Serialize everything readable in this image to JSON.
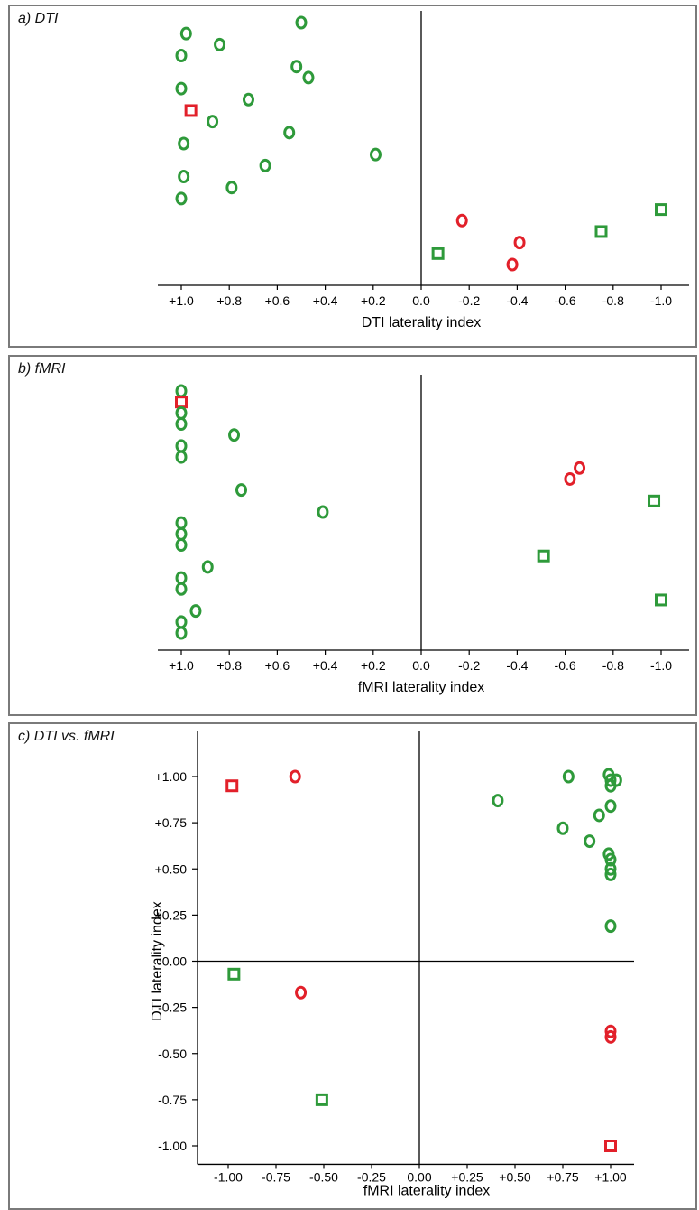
{
  "colors": {
    "green": "#2e9a3a",
    "red": "#e2202a",
    "axis": "#000000"
  },
  "panels": {
    "a": {
      "title": "a) DTI"
    },
    "b": {
      "title": "b) fMRI"
    },
    "c": {
      "title": "c) DTI vs. fMRI"
    }
  },
  "chart_data": [
    {
      "type": "scatter",
      "title": "a) DTI",
      "xlabel": "DTI laterality index",
      "ylabel": "",
      "xlim": [
        1.1,
        -1.1
      ],
      "x_reversed": true,
      "x_ticks": [
        {
          "value": 1.0,
          "label": "+1.0"
        },
        {
          "value": 0.8,
          "label": "+0.8"
        },
        {
          "value": 0.6,
          "label": "+0.6"
        },
        {
          "value": 0.4,
          "label": "+0.4"
        },
        {
          "value": 0.2,
          "label": "+0.2"
        },
        {
          "value": 0.0,
          "label": "0.0"
        },
        {
          "value": -0.2,
          "label": "-0.2"
        },
        {
          "value": -0.4,
          "label": "-0.4"
        },
        {
          "value": -0.6,
          "label": "-0.6"
        },
        {
          "value": -0.8,
          "label": "-0.8"
        },
        {
          "value": -1.0,
          "label": "-1.0"
        }
      ],
      "points": [
        {
          "x": 0.5,
          "color": "green",
          "marker": "circle"
        },
        {
          "x": 0.98,
          "color": "green",
          "marker": "circle"
        },
        {
          "x": 0.84,
          "color": "green",
          "marker": "circle"
        },
        {
          "x": 1.0,
          "color": "green",
          "marker": "circle"
        },
        {
          "x": 0.52,
          "color": "green",
          "marker": "circle"
        },
        {
          "x": 0.47,
          "color": "green",
          "marker": "circle"
        },
        {
          "x": 1.0,
          "color": "green",
          "marker": "circle"
        },
        {
          "x": 0.72,
          "color": "green",
          "marker": "circle"
        },
        {
          "x": 0.96,
          "color": "red",
          "marker": "square"
        },
        {
          "x": 0.87,
          "color": "green",
          "marker": "circle"
        },
        {
          "x": 0.55,
          "color": "green",
          "marker": "circle"
        },
        {
          "x": 0.99,
          "color": "green",
          "marker": "circle"
        },
        {
          "x": 0.19,
          "color": "green",
          "marker": "circle"
        },
        {
          "x": 0.65,
          "color": "green",
          "marker": "circle"
        },
        {
          "x": 0.99,
          "color": "green",
          "marker": "circle"
        },
        {
          "x": 0.79,
          "color": "green",
          "marker": "circle"
        },
        {
          "x": 1.0,
          "color": "green",
          "marker": "circle"
        },
        {
          "x": -1.0,
          "color": "green",
          "marker": "square"
        },
        {
          "x": -0.17,
          "color": "red",
          "marker": "circle"
        },
        {
          "x": -0.75,
          "color": "green",
          "marker": "square"
        },
        {
          "x": -0.41,
          "color": "red",
          "marker": "circle"
        },
        {
          "x": -0.07,
          "color": "green",
          "marker": "square"
        },
        {
          "x": -0.38,
          "color": "red",
          "marker": "circle"
        }
      ]
    },
    {
      "type": "scatter",
      "title": "b) fMRI",
      "xlabel": "fMRI laterality index",
      "ylabel": "",
      "xlim": [
        1.1,
        -1.1
      ],
      "x_reversed": true,
      "x_ticks": [
        {
          "value": 1.0,
          "label": "+1.0"
        },
        {
          "value": 0.8,
          "label": "+0.8"
        },
        {
          "value": 0.6,
          "label": "+0.6"
        },
        {
          "value": 0.4,
          "label": "+0.4"
        },
        {
          "value": 0.2,
          "label": "+0.2"
        },
        {
          "value": 0.0,
          "label": "0.0"
        },
        {
          "value": -0.2,
          "label": "-0.2"
        },
        {
          "value": -0.4,
          "label": "-0.4"
        },
        {
          "value": -0.6,
          "label": "-0.6"
        },
        {
          "value": -0.8,
          "label": "-0.8"
        },
        {
          "value": -1.0,
          "label": "-1.0"
        }
      ],
      "points": [
        {
          "x": 1.0,
          "color": "green",
          "marker": "circle"
        },
        {
          "x": 1.0,
          "color": "red",
          "marker": "square"
        },
        {
          "x": 1.0,
          "color": "green",
          "marker": "circle"
        },
        {
          "x": 1.0,
          "color": "green",
          "marker": "circle"
        },
        {
          "x": 0.78,
          "color": "green",
          "marker": "circle"
        },
        {
          "x": 1.0,
          "color": "green",
          "marker": "circle"
        },
        {
          "x": 1.0,
          "color": "green",
          "marker": "circle"
        },
        {
          "x": -0.66,
          "color": "red",
          "marker": "circle"
        },
        {
          "x": -0.62,
          "color": "red",
          "marker": "circle"
        },
        {
          "x": 0.75,
          "color": "green",
          "marker": "circle"
        },
        {
          "x": -0.97,
          "color": "green",
          "marker": "square"
        },
        {
          "x": 0.41,
          "color": "green",
          "marker": "circle"
        },
        {
          "x": 1.0,
          "color": "green",
          "marker": "circle"
        },
        {
          "x": 1.0,
          "color": "green",
          "marker": "circle"
        },
        {
          "x": 1.0,
          "color": "green",
          "marker": "circle"
        },
        {
          "x": -0.51,
          "color": "green",
          "marker": "square"
        },
        {
          "x": 0.89,
          "color": "green",
          "marker": "circle"
        },
        {
          "x": 1.0,
          "color": "green",
          "marker": "circle"
        },
        {
          "x": 1.0,
          "color": "green",
          "marker": "circle"
        },
        {
          "x": -1.0,
          "color": "green",
          "marker": "square"
        },
        {
          "x": 0.94,
          "color": "green",
          "marker": "circle"
        },
        {
          "x": 1.0,
          "color": "green",
          "marker": "circle"
        },
        {
          "x": 1.0,
          "color": "green",
          "marker": "circle"
        }
      ]
    },
    {
      "type": "scatter",
      "title": "c) DTI vs. fMRI",
      "xlabel": "fMRI laterality index",
      "ylabel": "DTI laterality index",
      "xlim": [
        -1.1,
        1.1
      ],
      "ylim": [
        -1.1,
        1.1
      ],
      "x_ticks": [
        {
          "value": -1.0,
          "label": "-1.00"
        },
        {
          "value": -0.75,
          "label": "-0.75"
        },
        {
          "value": -0.5,
          "label": "-0.50"
        },
        {
          "value": -0.25,
          "label": "-0.25"
        },
        {
          "value": 0.0,
          "label": "0.00"
        },
        {
          "value": 0.25,
          "label": "+0.25"
        },
        {
          "value": 0.5,
          "label": "+0.50"
        },
        {
          "value": 0.75,
          "label": "+0.75"
        },
        {
          "value": 1.0,
          "label": "+1.00"
        }
      ],
      "y_ticks": [
        {
          "value": 1.0,
          "label": "+1.00"
        },
        {
          "value": 0.75,
          "label": "+0.75"
        },
        {
          "value": 0.5,
          "label": "+0.50"
        },
        {
          "value": 0.25,
          "label": "+0.25"
        },
        {
          "value": 0.0,
          "label": "0.00"
        },
        {
          "value": -0.25,
          "label": "-0.25"
        },
        {
          "value": -0.5,
          "label": "-0.50"
        },
        {
          "value": -0.75,
          "label": "-0.75"
        },
        {
          "value": -1.0,
          "label": "-1.00"
        }
      ],
      "points": [
        {
          "x": -0.98,
          "y": 0.95,
          "color": "red",
          "marker": "square"
        },
        {
          "x": -0.65,
          "y": 1.0,
          "color": "red",
          "marker": "circle"
        },
        {
          "x": 0.78,
          "y": 1.0,
          "color": "green",
          "marker": "circle"
        },
        {
          "x": 0.99,
          "y": 1.01,
          "color": "green",
          "marker": "circle"
        },
        {
          "x": 1.0,
          "y": 0.98,
          "color": "green",
          "marker": "circle"
        },
        {
          "x": 1.03,
          "y": 0.98,
          "color": "green",
          "marker": "circle"
        },
        {
          "x": 1.0,
          "y": 0.95,
          "color": "green",
          "marker": "circle"
        },
        {
          "x": 0.41,
          "y": 0.87,
          "color": "green",
          "marker": "circle"
        },
        {
          "x": 1.0,
          "y": 0.84,
          "color": "green",
          "marker": "circle"
        },
        {
          "x": 0.94,
          "y": 0.79,
          "color": "green",
          "marker": "circle"
        },
        {
          "x": 0.75,
          "y": 0.72,
          "color": "green",
          "marker": "circle"
        },
        {
          "x": 0.89,
          "y": 0.65,
          "color": "green",
          "marker": "circle"
        },
        {
          "x": 0.99,
          "y": 0.58,
          "color": "green",
          "marker": "circle"
        },
        {
          "x": 1.0,
          "y": 0.55,
          "color": "green",
          "marker": "circle"
        },
        {
          "x": 1.0,
          "y": 0.5,
          "color": "green",
          "marker": "circle"
        },
        {
          "x": 1.0,
          "y": 0.47,
          "color": "green",
          "marker": "circle"
        },
        {
          "x": 1.0,
          "y": 0.19,
          "color": "green",
          "marker": "circle"
        },
        {
          "x": -0.97,
          "y": -0.07,
          "color": "green",
          "marker": "square"
        },
        {
          "x": -0.62,
          "y": -0.17,
          "color": "red",
          "marker": "circle"
        },
        {
          "x": 1.0,
          "y": -0.38,
          "color": "red",
          "marker": "circle"
        },
        {
          "x": 1.0,
          "y": -0.41,
          "color": "red",
          "marker": "circle"
        },
        {
          "x": -0.51,
          "y": -0.75,
          "color": "green",
          "marker": "square"
        },
        {
          "x": 1.0,
          "y": -1.0,
          "color": "red",
          "marker": "square"
        }
      ]
    }
  ]
}
